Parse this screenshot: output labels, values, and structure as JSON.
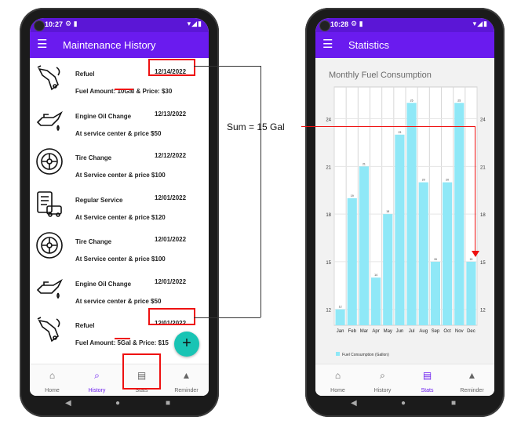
{
  "left_screen": {
    "status": {
      "time": "10:27"
    },
    "title": "Maintenance History",
    "items": [
      {
        "title": "Refuel",
        "date": "12/14/2022",
        "detail": "Fuel Amount: 10Gal & Price: $30",
        "icon": "fuel-pump-icon"
      },
      {
        "title": "Engine Oil Change",
        "date": "12/13/2022",
        "detail": "At service center & price $50",
        "icon": "oil-can-icon"
      },
      {
        "title": "Tire Change",
        "date": "12/12/2022",
        "detail": "At Service center & price $100",
        "icon": "tire-icon"
      },
      {
        "title": "Regular Service",
        "date": "12/01/2022",
        "detail": "At Service center & price $120",
        "icon": "service-checklist-icon"
      },
      {
        "title": "Tire Change",
        "date": "12/01/2022",
        "detail": "At Service center & price $100",
        "icon": "tire-icon"
      },
      {
        "title": "Engine Oil Change",
        "date": "12/01/2022",
        "detail": "At service center & price $50",
        "icon": "oil-can-icon"
      },
      {
        "title": "Refuel",
        "date": "12/01/2022",
        "detail": "Fuel Amount: 5Gal & Price: $15",
        "icon": "fuel-pump-icon"
      }
    ],
    "fab_label": "+",
    "nav": [
      {
        "label": "Home",
        "icon": "home-icon"
      },
      {
        "label": "History",
        "icon": "search-icon",
        "active": true
      },
      {
        "label": "Stats",
        "icon": "stats-icon"
      },
      {
        "label": "Reminder",
        "icon": "bell-icon"
      }
    ]
  },
  "right_screen": {
    "status": {
      "time": "10:28"
    },
    "title": "Statistics",
    "nav": [
      {
        "label": "Home",
        "icon": "home-icon"
      },
      {
        "label": "History",
        "icon": "search-icon"
      },
      {
        "label": "Stats",
        "icon": "stats-icon",
        "active": true
      },
      {
        "label": "Reminder",
        "icon": "bell-icon"
      }
    ]
  },
  "annotation": {
    "sum_label": "Sum = 15 Gal",
    "color": "#e11111"
  },
  "chart_data": {
    "type": "bar",
    "title": "Monthly Fuel Consumption",
    "categories": [
      "Jan",
      "Feb",
      "Mar",
      "Apr",
      "May",
      "Jun",
      "Jul",
      "Aug",
      "Sep",
      "Oct",
      "Nov",
      "Dec"
    ],
    "series": [
      {
        "name": "Fuel Consumption (Gallon)",
        "values": [
          12,
          19,
          21,
          14,
          18,
          23,
          25,
          20,
          15,
          20,
          25,
          15
        ]
      }
    ],
    "ylim": [
      11,
      26
    ],
    "yticks": [
      12,
      15,
      18,
      21,
      24
    ],
    "grid": true,
    "legend": "bottom-left",
    "bar_color": "#8fe8f7"
  }
}
